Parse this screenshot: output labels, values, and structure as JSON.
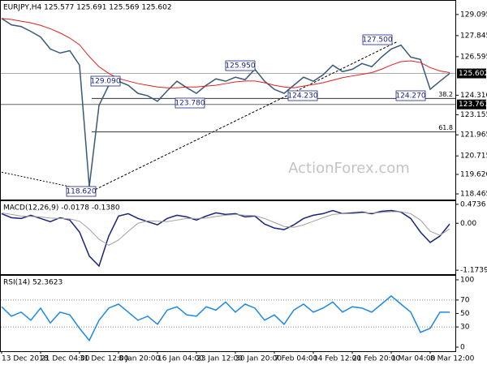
{
  "chart_data": [
    {
      "type": "line",
      "title": "EURJPY,H4 125.577 125.691 125.569 125.602",
      "watermark": "ActionForex.com",
      "ylim": [
        118.13,
        129.905
      ],
      "yticks": [
        129.095,
        127.845,
        126.595,
        {
          "value": 124.31,
          "label": "124.310"
        },
        123.155,
        121.965,
        120.715,
        {
          "value": 119.62,
          "label": "119.620"
        },
        118.465
      ],
      "current_price": 125.602,
      "support_level": 123.767,
      "fib_levels": [
        {
          "ratio": 38.2,
          "price": 124.12
        },
        {
          "ratio": 61.8,
          "price": 122.14
        }
      ],
      "trendlines": [
        [
          [
            0,
            119.75
          ],
          [
            9.25,
            118.62
          ]
        ],
        [
          [
            9.25,
            118.62
          ],
          [
            40.67,
            127.5
          ]
        ]
      ],
      "price_annotations": [
        "129.090",
        "123.780",
        "125.950",
        "124.230",
        "127.500",
        "124.270",
        "118.620"
      ],
      "series": [
        {
          "name": "Close",
          "color": "#3a5a78",
          "values": [
            128.86,
            128.48,
            128.38,
            128.09,
            127.76,
            127.05,
            126.81,
            126.95,
            126.09,
            118.9,
            123.71,
            124.9,
            125.14,
            124.9,
            124.42,
            124.28,
            123.95,
            124.57,
            125.14,
            124.76,
            124.42,
            124.9,
            125.28,
            125.14,
            125.38,
            125.23,
            125.85,
            125.14,
            124.66,
            124.42,
            124.9,
            125.38,
            125.14,
            125.52,
            126.09,
            125.71,
            125.85,
            126.19,
            126.0,
            126.57,
            127.05,
            127.28,
            126.57,
            126.43,
            124.66,
            125.14,
            125.6
          ]
        },
        {
          "name": "MA",
          "color": "#e02020",
          "values": [
            128.86,
            128.8,
            128.7,
            128.6,
            128.45,
            128.25,
            128.0,
            127.7,
            127.3,
            126.6,
            126.0,
            125.6,
            125.3,
            125.15,
            125.0,
            124.9,
            124.8,
            124.75,
            124.75,
            124.8,
            124.8,
            124.85,
            124.9,
            125.0,
            125.1,
            125.15,
            125.15,
            125.05,
            124.9,
            124.8,
            124.75,
            124.85,
            124.95,
            125.05,
            125.2,
            125.35,
            125.45,
            125.55,
            125.65,
            125.85,
            126.1,
            126.3,
            126.35,
            126.25,
            125.95,
            125.75,
            125.65
          ]
        }
      ]
    },
    {
      "type": "line",
      "title": "MACD(12,26,9) -0.0178 -0.1380",
      "ylim": [
        -1.273,
        0.553
      ],
      "yticks": [
        0.4736,
        {
          "value": 0,
          "label": "0.00"
        },
        -1.1739
      ],
      "series": [
        {
          "name": "MACD",
          "color": "#1a237e",
          "values": [
            0.24,
            0.14,
            0.12,
            0.2,
            0.12,
            0.04,
            0.14,
            0.08,
            -0.22,
            -0.82,
            -1.07,
            -0.32,
            0.18,
            0.24,
            0.12,
            0.04,
            -0.04,
            0.12,
            0.2,
            0.16,
            0.08,
            0.18,
            0.26,
            0.22,
            0.24,
            0.16,
            0.18,
            -0.02,
            -0.12,
            -0.16,
            -0.04,
            0.12,
            0.2,
            0.24,
            0.32,
            0.24,
            0.26,
            0.28,
            0.24,
            0.3,
            0.32,
            0.28,
            0.12,
            -0.22,
            -0.48,
            -0.32,
            -0.02
          ]
        },
        {
          "name": "Signal",
          "color": "#a0a0a0",
          "values": [
            0.26,
            0.22,
            0.18,
            0.17,
            0.16,
            0.13,
            0.12,
            0.11,
            0.05,
            -0.15,
            -0.4,
            -0.55,
            -0.42,
            -0.2,
            0.0,
            0.06,
            0.05,
            0.04,
            0.08,
            0.12,
            0.12,
            0.13,
            0.17,
            0.2,
            0.22,
            0.2,
            0.19,
            0.12,
            0.02,
            -0.08,
            -0.1,
            -0.04,
            0.05,
            0.14,
            0.22,
            0.24,
            0.24,
            0.26,
            0.26,
            0.27,
            0.29,
            0.29,
            0.24,
            0.08,
            -0.2,
            -0.3,
            -0.14
          ]
        }
      ]
    },
    {
      "type": "line",
      "title": "RSI(14) 52.3623",
      "ylim": [
        -6,
        106
      ],
      "yticks": [
        100,
        70,
        50,
        30,
        0
      ],
      "levels": [
        70,
        30
      ],
      "categories": [
        "13 Dec 2018",
        null,
        null,
        null,
        "21 Dec 04:00",
        null,
        null,
        null,
        "31 Dec 12:00",
        null,
        null,
        null,
        "8 Jan 20:00",
        null,
        null,
        null,
        "16 Jan 04:00",
        null,
        null,
        null,
        "23 Jan 12:00",
        null,
        null,
        null,
        "30 Jan 20:00",
        null,
        null,
        null,
        "7 Feb 04:00",
        null,
        null,
        null,
        "14 Feb 12:00",
        null,
        null,
        null,
        "21 Feb 20:00",
        null,
        null,
        null,
        "1 Mar 04:00",
        null,
        null,
        null,
        "8 Mar 12:00",
        null,
        null
      ],
      "series": [
        {
          "name": "RSI",
          "color": "#1e88e5",
          "values": [
            60,
            46,
            52,
            40,
            58,
            36,
            52,
            48,
            28,
            10,
            40,
            58,
            64,
            52,
            40,
            46,
            34,
            55,
            60,
            48,
            46,
            60,
            55,
            67,
            52,
            64,
            58,
            40,
            48,
            34,
            55,
            64,
            52,
            58,
            67,
            52,
            60,
            58,
            52,
            64,
            76,
            64,
            52,
            22,
            28,
            52,
            52
          ]
        }
      ]
    }
  ]
}
